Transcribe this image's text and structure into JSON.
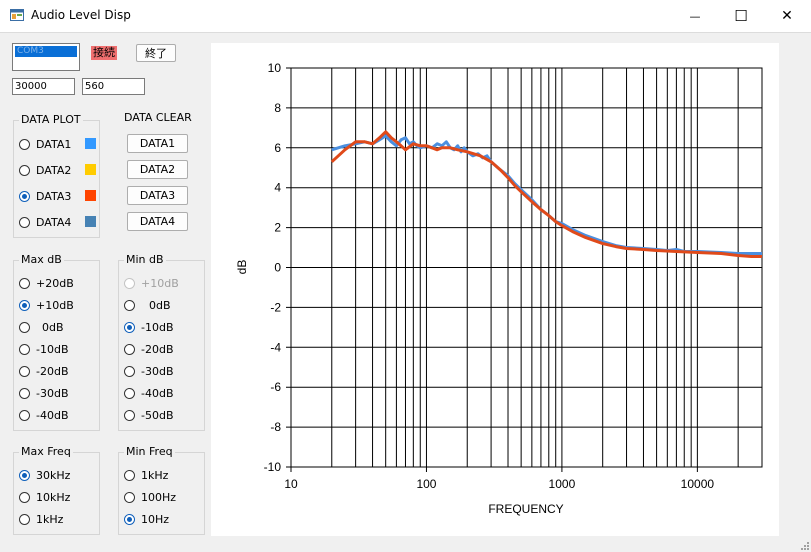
{
  "window": {
    "title": "Audio Level Disp",
    "controls": {
      "minimize": "—",
      "maximize": "☐",
      "close": "✕"
    }
  },
  "top": {
    "port_select": {
      "selected": "COM3"
    },
    "status_badge": "接続",
    "exit_button": "終了",
    "field_a": "30000",
    "field_b": "560"
  },
  "data_plot": {
    "title": "DATA PLOT",
    "items": [
      {
        "label": "DATA1",
        "checked": false,
        "color": "#3399ff"
      },
      {
        "label": "DATA2",
        "checked": false,
        "color": "#ffcc00"
      },
      {
        "label": "DATA3",
        "checked": true,
        "color": "#ff4400"
      },
      {
        "label": "DATA4",
        "checked": false,
        "color": "#4682b4"
      }
    ]
  },
  "data_clear": {
    "title": "DATA CLEAR",
    "buttons": [
      "DATA1",
      "DATA2",
      "DATA3",
      "DATA4"
    ]
  },
  "max_db": {
    "title": "Max dB",
    "options": [
      {
        "label": "+20dB",
        "checked": false
      },
      {
        "label": "+10dB",
        "checked": true
      },
      {
        "label": "0dB",
        "checked": false
      },
      {
        "label": "-10dB",
        "checked": false
      },
      {
        "label": "-20dB",
        "checked": false
      },
      {
        "label": "-30dB",
        "checked": false
      },
      {
        "label": "-40dB",
        "checked": false
      }
    ]
  },
  "min_db": {
    "title": "Min dB",
    "options": [
      {
        "label": "+10dB",
        "checked": false,
        "disabled": true
      },
      {
        "label": "0dB",
        "checked": false
      },
      {
        "label": "-10dB",
        "checked": true
      },
      {
        "label": "-20dB",
        "checked": false
      },
      {
        "label": "-30dB",
        "checked": false
      },
      {
        "label": "-40dB",
        "checked": false
      },
      {
        "label": "-50dB",
        "checked": false
      }
    ]
  },
  "max_freq": {
    "title": "Max Freq",
    "options": [
      {
        "label": "30kHz",
        "checked": true
      },
      {
        "label": "10kHz",
        "checked": false
      },
      {
        "label": "1kHz",
        "checked": false
      }
    ]
  },
  "min_freq": {
    "title": "Min Freq",
    "options": [
      {
        "label": "1kHz",
        "checked": false
      },
      {
        "label": "100Hz",
        "checked": false
      },
      {
        "label": "10Hz",
        "checked": true
      }
    ]
  },
  "chart_data": {
    "type": "line",
    "xlabel": "FREQUENCY",
    "ylabel": "dB",
    "x_scale": "log",
    "xlim": [
      10,
      30000
    ],
    "ylim": [
      -10,
      10
    ],
    "x_ticks": [
      10,
      100,
      1000,
      10000
    ],
    "x_tick_labels": [
      "10",
      "100",
      "1000",
      "10000"
    ],
    "y_ticks": [
      -10,
      -8,
      -6,
      -4,
      -2,
      0,
      2,
      4,
      6,
      8,
      10
    ],
    "y_tick_labels": [
      "-10",
      "-8",
      "-6",
      "-4",
      "-2",
      "0",
      "2",
      "4",
      "6",
      "8",
      "10"
    ],
    "grid": true,
    "legend": "none",
    "series": [
      {
        "color": "#4a8fe0",
        "x": [
          20,
          25,
          30,
          35,
          40,
          45,
          50,
          55,
          60,
          65,
          70,
          75,
          80,
          85,
          90,
          100,
          110,
          120,
          130,
          140,
          150,
          160,
          170,
          180,
          190,
          200,
          220,
          240,
          260,
          280,
          300,
          350,
          400,
          450,
          500,
          600,
          700,
          800,
          900,
          1000,
          1200,
          1500,
          2000,
          2500,
          3000,
          4000,
          5000,
          6000,
          7000,
          8000,
          10000,
          15000,
          20000,
          25000,
          30000
        ],
        "y": [
          5.9,
          6.1,
          6.2,
          6.3,
          6.2,
          6.4,
          6.6,
          6.3,
          6.1,
          6.4,
          6.5,
          6.2,
          6.3,
          6.1,
          6.0,
          6.1,
          6.0,
          6.2,
          6.1,
          6.3,
          6.0,
          5.9,
          6.1,
          5.8,
          6.0,
          5.8,
          5.6,
          5.7,
          5.5,
          5.6,
          5.3,
          4.9,
          4.6,
          4.2,
          3.9,
          3.4,
          2.9,
          2.6,
          2.3,
          2.2,
          1.9,
          1.6,
          1.3,
          1.1,
          1.0,
          0.95,
          0.9,
          0.85,
          0.9,
          0.8,
          0.8,
          0.75,
          0.7,
          0.7,
          0.7
        ]
      },
      {
        "color": "#e04a1a",
        "x": [
          20,
          25,
          30,
          35,
          40,
          45,
          50,
          55,
          60,
          65,
          70,
          80,
          90,
          100,
          110,
          120,
          130,
          150,
          170,
          200,
          250,
          300,
          350,
          400,
          450,
          500,
          600,
          700,
          800,
          900,
          1000,
          1200,
          1500,
          2000,
          2500,
          3000,
          4000,
          5000,
          7000,
          10000,
          15000,
          20000,
          25000,
          30000
        ],
        "y": [
          5.3,
          5.9,
          6.3,
          6.3,
          6.2,
          6.5,
          6.8,
          6.5,
          6.3,
          6.1,
          5.9,
          6.2,
          6.1,
          6.1,
          6.0,
          5.9,
          6.0,
          6.0,
          5.9,
          5.8,
          5.6,
          5.3,
          4.9,
          4.5,
          4.1,
          3.8,
          3.3,
          2.9,
          2.6,
          2.3,
          2.1,
          1.8,
          1.5,
          1.2,
          1.05,
          0.95,
          0.9,
          0.85,
          0.8,
          0.75,
          0.7,
          0.6,
          0.55,
          0.55
        ]
      }
    ]
  }
}
